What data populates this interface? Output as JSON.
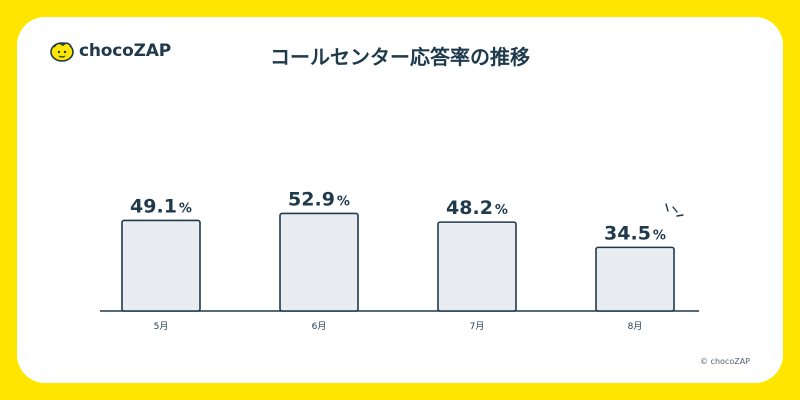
{
  "header": {
    "logo_text": "chocoZAP",
    "title": "コールセンター応答率の推移"
  },
  "footer": {
    "copyright": "© chocoZAP"
  },
  "colors": {
    "background": "#FFE600",
    "card": "#FFFFFF",
    "bar_fill": "#E9EDF1",
    "bar_stroke": "#1F3A4D",
    "text": "#1F3A4D"
  },
  "icons": [
    "chocozap-logo-icon",
    "emphasis-spark-icon"
  ],
  "chart_data": {
    "type": "bar",
    "title": "コールセンター応答率の推移",
    "categories": [
      "5月",
      "6月",
      "7月",
      "8月"
    ],
    "values": [
      49.1,
      52.9,
      48.2,
      34.5
    ],
    "value_labels": [
      "49.1",
      "52.9",
      "48.2",
      "34.5"
    ],
    "unit": "%",
    "xlabel": "",
    "ylabel": "",
    "ylim": [
      0,
      60
    ],
    "grid": false,
    "legend": "none",
    "highlight_category": "8月"
  }
}
